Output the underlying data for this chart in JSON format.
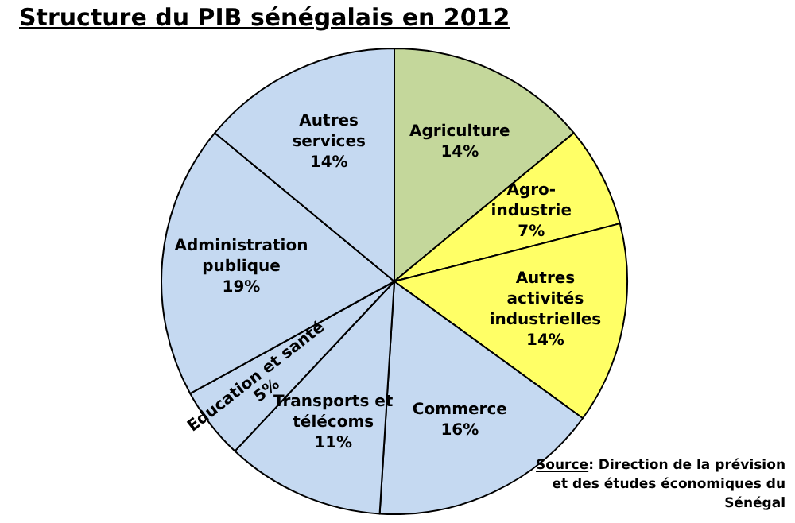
{
  "chart_data": {
    "type": "pie",
    "title": "Structure du PIB sénégalais en 2012",
    "categories": [
      "Agriculture",
      "Agro-industrie",
      "Autres activités industrielles",
      "Commerce",
      "Transports et télécoms",
      "Education et santé",
      "Administration publique",
      "Autres services"
    ],
    "values": [
      14,
      7,
      14,
      16,
      11,
      5,
      19,
      14
    ],
    "value_labels": [
      "14%",
      "7%",
      "14%",
      "16%",
      "11%",
      "5%",
      "19%",
      "14%"
    ],
    "colors": [
      "#c4d79b",
      "#ffff66",
      "#ffff66",
      "#c5d9f1",
      "#c5d9f1",
      "#c5d9f1",
      "#c5d9f1",
      "#c5d9f1"
    ],
    "legend": false,
    "annotations": [
      "Source: Direction de la prévision et des études économiques du Sénégal"
    ]
  }
}
